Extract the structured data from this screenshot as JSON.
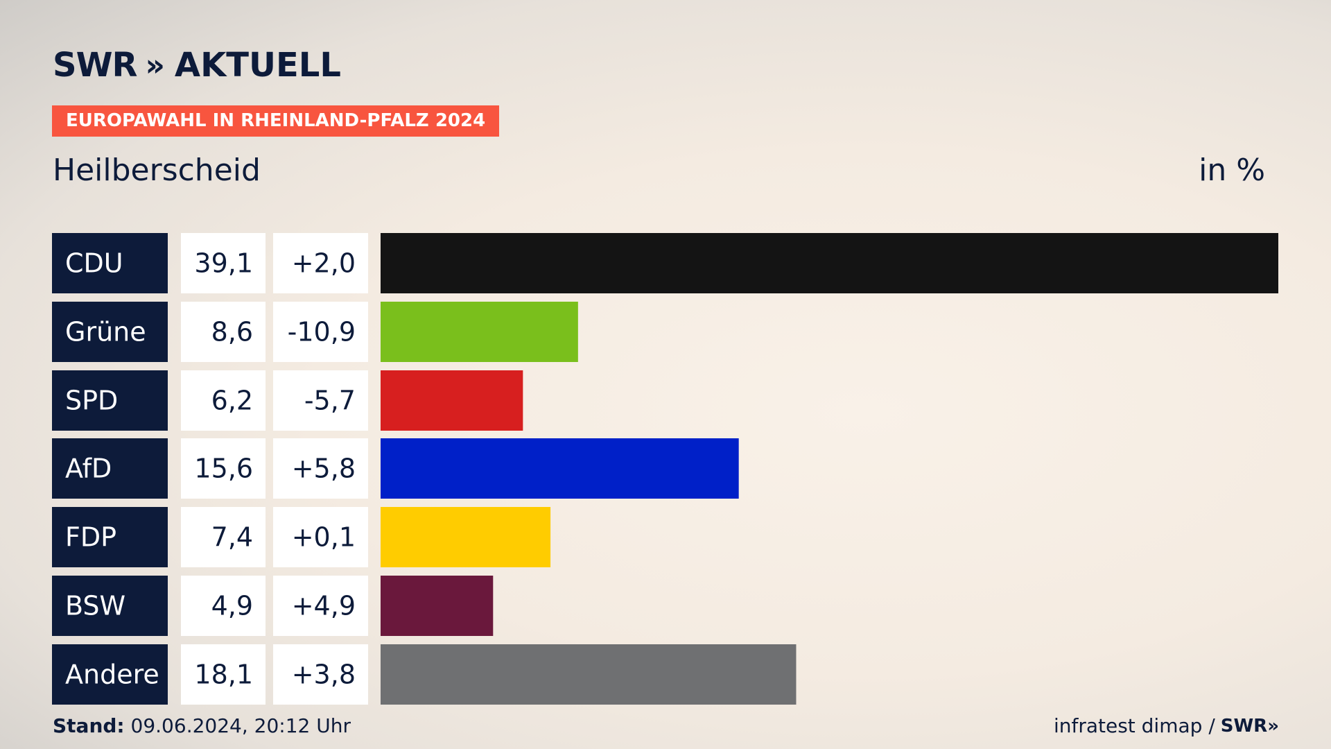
{
  "logo": {
    "brand": "SWR",
    "chevrons": "»",
    "name": "AKTUELL"
  },
  "tag": "EUROPAWAHL IN RHEINLAND-PFALZ 2024",
  "title": "Heilberscheid",
  "unit": "in %",
  "footer": {
    "stand_label": "Stand:",
    "stand_value": "09.06.2024, 20:12 Uhr",
    "source": "infratest dimap /",
    "source_logo": "SWR»"
  },
  "chart_data": {
    "type": "bar",
    "orientation": "horizontal",
    "categories": [
      "CDU",
      "Grüne",
      "SPD",
      "AfD",
      "FDP",
      "BSW",
      "Andere"
    ],
    "values": [
      39.1,
      8.6,
      6.2,
      15.6,
      7.4,
      4.9,
      18.1
    ],
    "value_labels": [
      "39,1",
      "8,6",
      "6,2",
      "15,6",
      "7,4",
      "4,9",
      "18,1"
    ],
    "changes": [
      2.0,
      -10.9,
      -5.7,
      5.8,
      0.1,
      4.9,
      3.8
    ],
    "change_labels": [
      "+2,0",
      "-10,9",
      "-5,7",
      "+5,8",
      "+0,1",
      "+4,9",
      "+3,8"
    ],
    "colors": [
      "#141414",
      "#7abf1c",
      "#d71f1f",
      "#0020c8",
      "#ffcc00",
      "#6a183c",
      "#6f7072"
    ],
    "xlim": [
      0,
      39.1
    ]
  }
}
